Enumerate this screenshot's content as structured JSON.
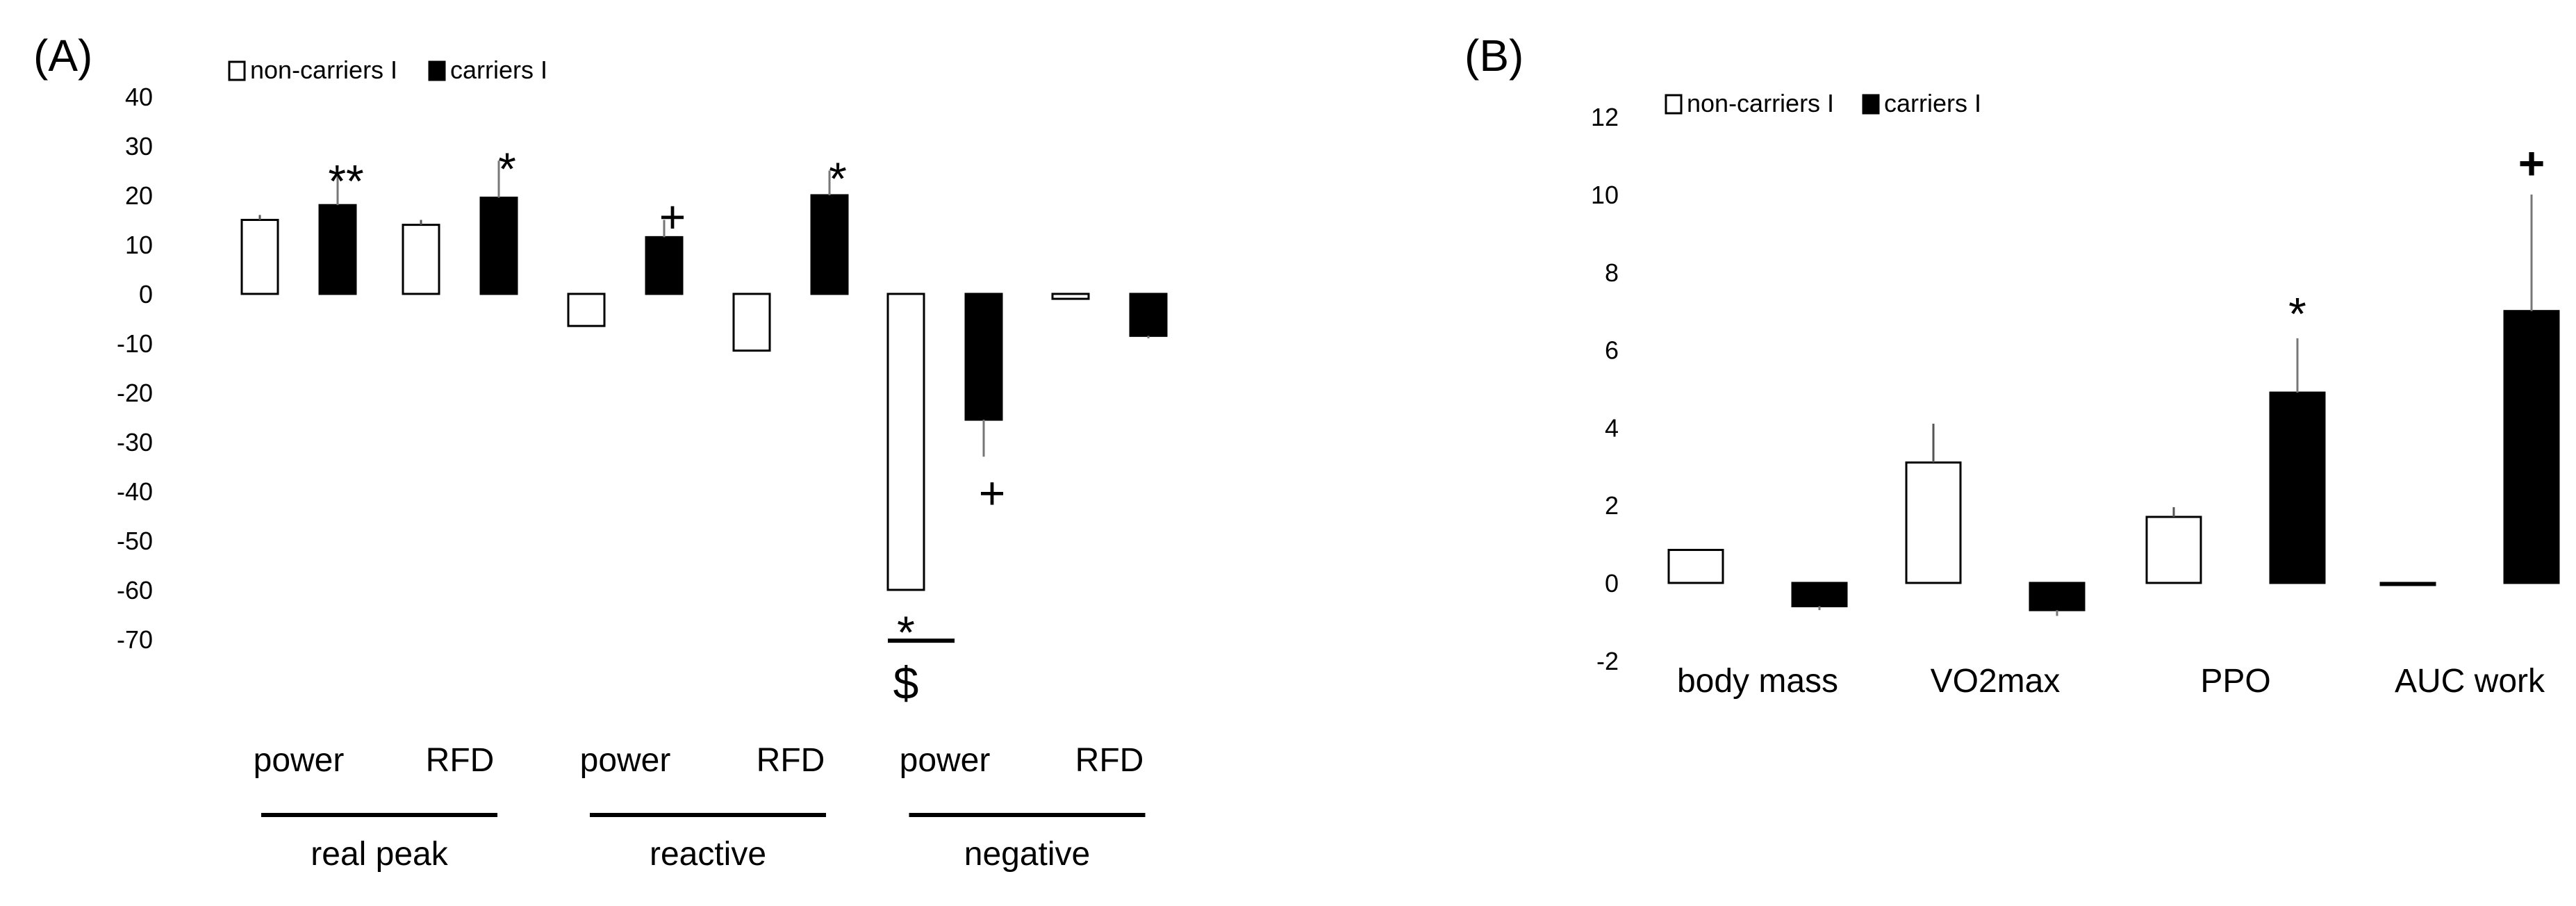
{
  "chart_data": [
    {
      "panel_label": "(A)",
      "type": "bar",
      "yticks": [
        40,
        30,
        20,
        10,
        0,
        -10,
        -20,
        -30,
        -40,
        -50,
        -60,
        -70
      ],
      "ylim": [
        -70,
        40
      ],
      "grid": false,
      "legend_position": "top-left",
      "legend": [
        "non-carriers I",
        "carriers I"
      ],
      "categories": [
        "power",
        "RFD",
        "power",
        "RFD",
        "power",
        "RFD"
      ],
      "groups": [
        {
          "label": "real peak",
          "categories": [
            0,
            1
          ]
        },
        {
          "label": "reactive",
          "categories": [
            2,
            3
          ]
        },
        {
          "label": "negative",
          "categories": [
            4,
            5
          ]
        }
      ],
      "series": [
        {
          "values": [
            15,
            14,
            -6.5,
            -11.5,
            -60,
            -1
          ],
          "errors": [
            1,
            1,
            0,
            0,
            0,
            0
          ],
          "fill": "#ffffff"
        },
        {
          "values": [
            18,
            19.5,
            11.5,
            20,
            -25.5,
            -8.5
          ],
          "errors": [
            6.5,
            7.5,
            3.5,
            5,
            7.5,
            0.5
          ],
          "fill": "#000000"
        }
      ],
      "annotations": [
        {
          "text": "**",
          "category": 0,
          "series": 1,
          "value": 25
        },
        {
          "text": "*",
          "category": 1,
          "series": 1,
          "value": 27.5
        },
        {
          "text": "+",
          "category": 2,
          "series": 1,
          "value": 15.5
        },
        {
          "text": "*",
          "category": 3,
          "series": 1,
          "value": 25.5
        },
        {
          "text": "+",
          "category": 4,
          "series": 1,
          "value": -40.5
        },
        {
          "text": "*",
          "category": 4,
          "series": 0,
          "value": -66.5
        },
        {
          "text": "$",
          "category": 4,
          "series": 0,
          "value": -79
        }
      ]
    },
    {
      "panel_label": "(B)",
      "type": "bar",
      "yticks": [
        12,
        10,
        8,
        6,
        4,
        2,
        0,
        -2
      ],
      "ylim": [
        -2,
        12
      ],
      "grid": false,
      "legend_position": "top-left",
      "legend": [
        "non-carriers I",
        "carriers I"
      ],
      "categories": [
        "body mass",
        "VO2max",
        "PPO",
        "AUC work"
      ],
      "series": [
        {
          "values": [
            0.85,
            3.1,
            1.7,
            0
          ],
          "errors": [
            0,
            1,
            0.25,
            0
          ],
          "fill": "#ffffff"
        },
        {
          "values": [
            -0.6,
            -0.7,
            4.9,
            7
          ],
          "errors": [
            0.1,
            0.15,
            1.4,
            3
          ],
          "fill": "#000000"
        }
      ],
      "annotations": [
        {
          "text": "*",
          "category": 2,
          "series": 1,
          "value": 7.2
        },
        {
          "text": "+",
          "category": 3,
          "series": 1,
          "value": 10.8
        }
      ]
    }
  ]
}
